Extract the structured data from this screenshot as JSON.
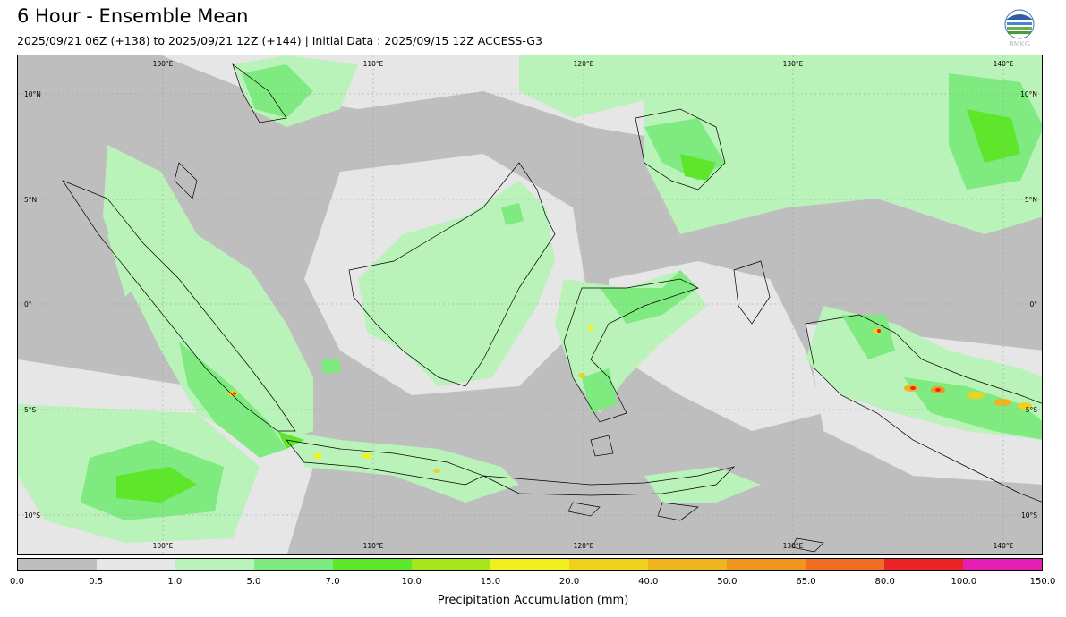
{
  "title": "6 Hour - Ensemble Mean",
  "subtitle": "2025/09/21 06Z (+138) to 2025/09/21 12Z (+144) | Initial Data : 2025/09/15 12Z ACCESS-G3",
  "logo_text": "BMKG",
  "map": {
    "lon_labels": [
      "100°E",
      "110°E",
      "120°E",
      "130°E",
      "140°E"
    ],
    "lat_labels_left": [
      "10°N",
      "5°N",
      "0°",
      "5°S",
      "10°S"
    ],
    "lat_labels_right": [
      "10°N",
      "5°N",
      "0°",
      "5°S",
      "10°S"
    ]
  },
  "colorbar": {
    "label": "Precipitation Accumulation (mm)",
    "ticks": [
      "0.0",
      "0.5",
      "1.0",
      "5.0",
      "7.0",
      "10.0",
      "15.0",
      "20.0",
      "40.0",
      "50.0",
      "65.0",
      "80.0",
      "100.0",
      "150.0"
    ],
    "colors": [
      "#bebebe",
      "#e6e6e6",
      "#b9f3b9",
      "#7fea7f",
      "#5ee62a",
      "#a5e61e",
      "#f0f01e",
      "#f0d21e",
      "#f0b41e",
      "#f0961e",
      "#ef6e23",
      "#ea2323",
      "#e61eb4"
    ]
  }
}
